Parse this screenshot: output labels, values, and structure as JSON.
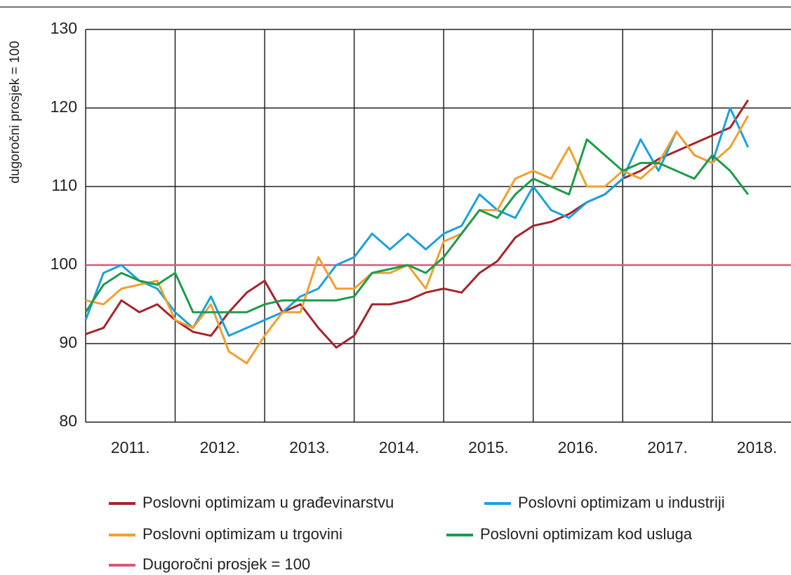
{
  "chart_data": {
    "type": "line",
    "ylabel": "dugoročni prosjek = 100",
    "x": [
      2011.0,
      2011.2,
      2011.4,
      2011.6,
      2011.8,
      2012.0,
      2012.2,
      2012.4,
      2012.6,
      2012.8,
      2013.0,
      2013.2,
      2013.4,
      2013.6,
      2013.8,
      2014.0,
      2014.2,
      2014.4,
      2014.6,
      2014.8,
      2015.0,
      2015.2,
      2015.4,
      2015.6,
      2015.8,
      2016.0,
      2016.2,
      2016.4,
      2016.6,
      2016.8,
      2017.0,
      2017.2,
      2017.4,
      2017.6,
      2017.8,
      2018.0,
      2018.2,
      2018.4
    ],
    "xlim": [
      2011,
      2018.88
    ],
    "xticks": [
      {
        "value": 2011.5,
        "label": "2011."
      },
      {
        "value": 2012.5,
        "label": "2012."
      },
      {
        "value": 2013.5,
        "label": "2013."
      },
      {
        "value": 2014.5,
        "label": "2014."
      },
      {
        "value": 2015.5,
        "label": "2015."
      },
      {
        "value": 2016.5,
        "label": "2016."
      },
      {
        "value": 2017.5,
        "label": "2017."
      },
      {
        "value": 2018.5,
        "label": "2018."
      }
    ],
    "xgrid": [
      2012,
      2013,
      2014,
      2015,
      2016,
      2017,
      2018
    ],
    "ylim": [
      80,
      130
    ],
    "yticks": [
      80,
      90,
      100,
      110,
      120,
      130
    ],
    "grid": true,
    "series": [
      {
        "name": "Poslovni optimizam u građevinarstvu",
        "color": "#a5242a",
        "values": [
          91.2,
          92,
          95.5,
          94,
          95,
          93,
          91.5,
          91,
          94,
          96.5,
          98,
          94,
          95,
          92,
          89.5,
          91,
          95,
          95,
          95.5,
          96.5,
          97,
          96.5,
          99,
          100.5,
          103.5,
          105,
          105.5,
          106.5,
          108,
          109,
          111,
          112,
          113.5,
          114.5,
          115.5,
          116.5,
          117.5,
          121
        ]
      },
      {
        "name": "Poslovni optimizam u industriji",
        "color": "#1ba1db",
        "values": [
          93,
          99,
          100,
          98,
          97,
          94,
          92,
          96,
          91,
          92,
          93,
          94,
          96,
          97,
          100,
          101,
          104,
          102,
          104,
          102,
          104,
          105,
          109,
          107,
          106,
          110,
          107,
          106,
          108,
          109,
          111,
          116,
          112,
          117,
          114,
          113,
          120,
          115
        ]
      },
      {
        "name": "Poslovni optimizam u trgovini",
        "color": "#f0a030",
        "values": [
          95.5,
          95,
          97,
          97.5,
          98,
          93,
          92,
          95,
          89,
          87.5,
          91,
          94,
          94,
          101,
          97,
          97,
          99,
          99,
          100,
          97,
          103,
          104,
          107,
          107,
          111,
          112,
          111,
          115,
          110,
          110,
          112,
          111,
          113,
          117,
          114,
          113,
          115,
          119
        ]
      },
      {
        "name": "Poslovni optimizam kod usluga",
        "color": "#1e9b4a",
        "values": [
          94,
          97.5,
          99,
          98,
          97.5,
          99,
          94,
          94,
          94,
          94,
          95,
          95.5,
          95.5,
          95.5,
          95.5,
          96,
          99,
          99.5,
          100,
          99,
          101,
          104,
          107,
          106,
          109,
          111,
          110,
          109,
          116,
          114,
          112,
          113,
          113,
          112,
          111,
          114,
          112,
          109
        ]
      }
    ],
    "hline": {
      "name": "Dugoročni prosjek = 100",
      "value": 100,
      "color": "#d9587a"
    }
  }
}
